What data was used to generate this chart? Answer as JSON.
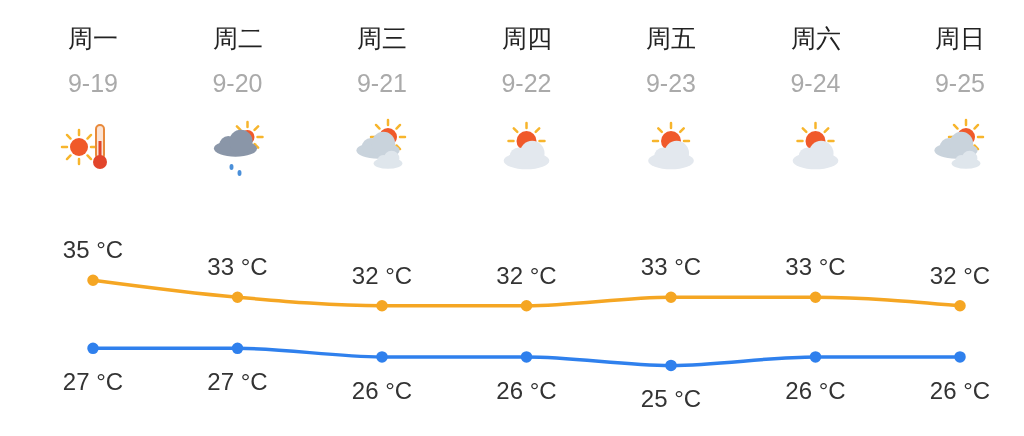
{
  "chart_data": {
    "type": "line",
    "categories": [
      "周一\n9-19",
      "周二\n9-20",
      "周三\n9-21",
      "周四\n9-22",
      "周五\n9-23",
      "周六\n9-24",
      "周日\n9-25"
    ],
    "series": [
      {
        "color": "#f5a623",
        "values": [
          35,
          33,
          32,
          32,
          33,
          33,
          32
        ],
        "value_labels": [
          "35 °C",
          "33 °C",
          "32 °C",
          "32 °C",
          "33 °C",
          "33 °C",
          "32 °C"
        ]
      },
      {
        "color": "#2f80ed",
        "values": [
          27,
          27,
          26,
          26,
          25,
          26,
          26
        ],
        "value_labels": [
          "27 °C",
          "27 °C",
          "26 °C",
          "26 °C",
          "25 °C",
          "26 °C",
          "26 °C"
        ]
      }
    ],
    "tick_labels": "x",
    "grid": false,
    "legend": false,
    "marker": "circle",
    "line_style": "solid"
  }
}
